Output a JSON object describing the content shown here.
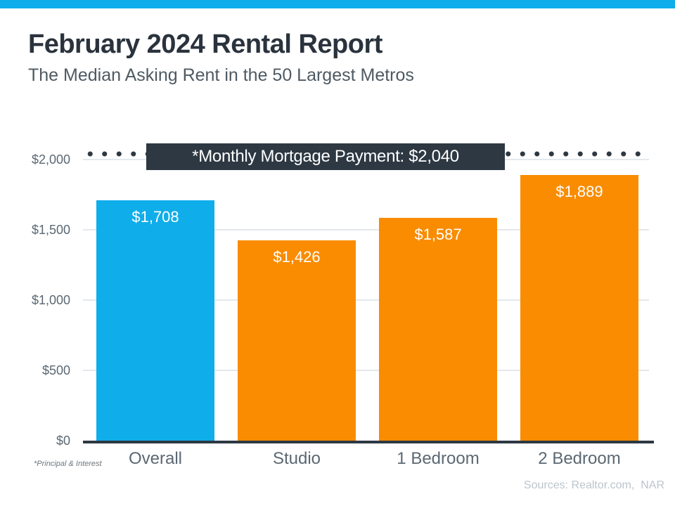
{
  "page": {
    "title": "February 2024 Rental Report",
    "subtitle": "The Median Asking Rent in the 50 Largest Metros",
    "footnote": "*Principal & Interest",
    "sources": "Sources: Realtor.com,  NAR"
  },
  "colors": {
    "accent_blue": "#0FADEA",
    "accent_orange": "#F98C00",
    "dark_slate": "#2D3842",
    "gridline": "#E4E8EC"
  },
  "chart_data": {
    "type": "bar",
    "title": "February 2024 Rental Report",
    "subtitle": "The Median Asking Rent in the 50 Largest Metros",
    "categories": [
      "Overall",
      "Studio",
      "1 Bedroom",
      "2 Bedroom"
    ],
    "values": [
      1708,
      1426,
      1587,
      1889
    ],
    "value_labels": [
      "$1,708",
      "$1,426",
      "$1,587",
      "$1,889"
    ],
    "bar_colors": [
      "#0FADEA",
      "#F98C00",
      "#F98C00",
      "#F98C00"
    ],
    "ytick_values": [
      0,
      500,
      1000,
      1500,
      2000
    ],
    "ytick_labels": [
      "$0",
      "$500",
      "$1,000",
      "$1,500",
      "$2,000"
    ],
    "ylim": [
      0,
      2100
    ],
    "grid": true,
    "legend": "none",
    "xlabel": "",
    "ylabel": "",
    "reference_line": {
      "value": 2040,
      "label": "*Monthly Mortgage Payment: $2,040",
      "style": "dotted"
    }
  }
}
